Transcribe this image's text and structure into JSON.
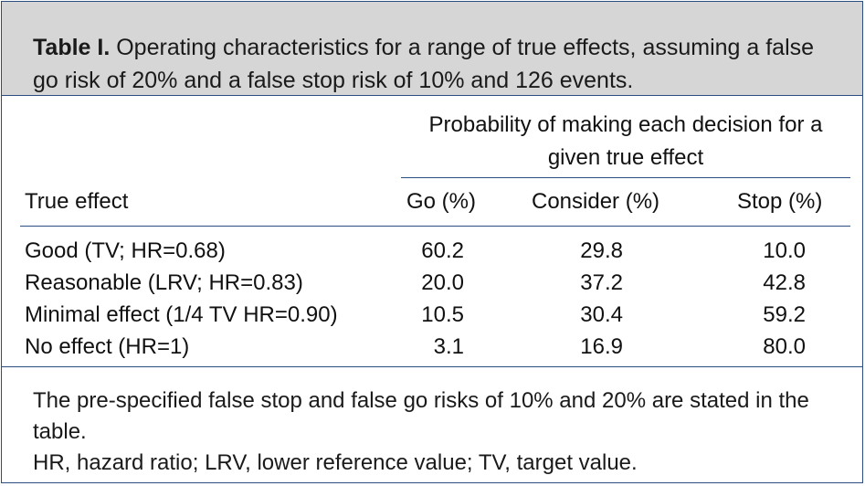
{
  "caption": {
    "label": "Table I.",
    "text": "Operating characteristics for a range of true effects, assuming a false go risk of 20% and a false stop risk of 10% and 126 events."
  },
  "table": {
    "group_header": "Probability of making each decision for a given true effect",
    "columns": [
      "True effect",
      "Go (%)",
      "Consider (%)",
      "Stop (%)"
    ],
    "rows": [
      [
        "Good (TV; HR=0.68)",
        "60.2",
        "29.8",
        "10.0"
      ],
      [
        "Reasonable (LRV; HR=0.83)",
        "20.0",
        "37.2",
        "42.8"
      ],
      [
        "Minimal effect (1/4 TV HR=0.90)",
        "10.5",
        "30.4",
        "59.2"
      ],
      [
        "No effect (HR=1)",
        "3.1",
        "16.9",
        "80.0"
      ]
    ]
  },
  "footnotes": [
    "The pre-specified false stop and false go risks of 10% and 20% are stated in the table.",
    "HR, hazard ratio; LRV, lower reference value; TV, target value."
  ],
  "colors": {
    "caption_background": "#d6d6d6",
    "rule_color": "#2a4d82"
  }
}
